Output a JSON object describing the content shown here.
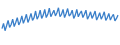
{
  "chart_data": {
    "type": "line",
    "values": [
      35,
      48,
      30,
      42,
      55,
      38,
      45,
      58,
      40,
      50,
      62,
      44,
      52,
      66,
      48,
      58,
      70,
      50,
      60,
      72,
      55,
      62,
      78,
      58,
      66,
      80,
      60,
      68,
      82,
      62,
      70,
      85,
      64,
      72,
      80,
      66,
      74,
      86,
      64,
      70,
      82,
      62,
      72,
      84,
      66,
      70,
      80,
      60,
      68,
      82,
      64,
      72,
      78,
      62,
      70,
      80,
      58,
      66,
      76,
      60,
      68,
      78,
      56,
      64,
      74,
      58,
      66,
      76,
      55,
      62,
      72,
      56,
      64,
      70,
      54,
      60,
      68
    ],
    "color": "#3a7fc9",
    "ylim": [
      0,
      100
    ],
    "yticks": [
      0,
      100
    ],
    "grid": false,
    "tick_labels": false
  }
}
